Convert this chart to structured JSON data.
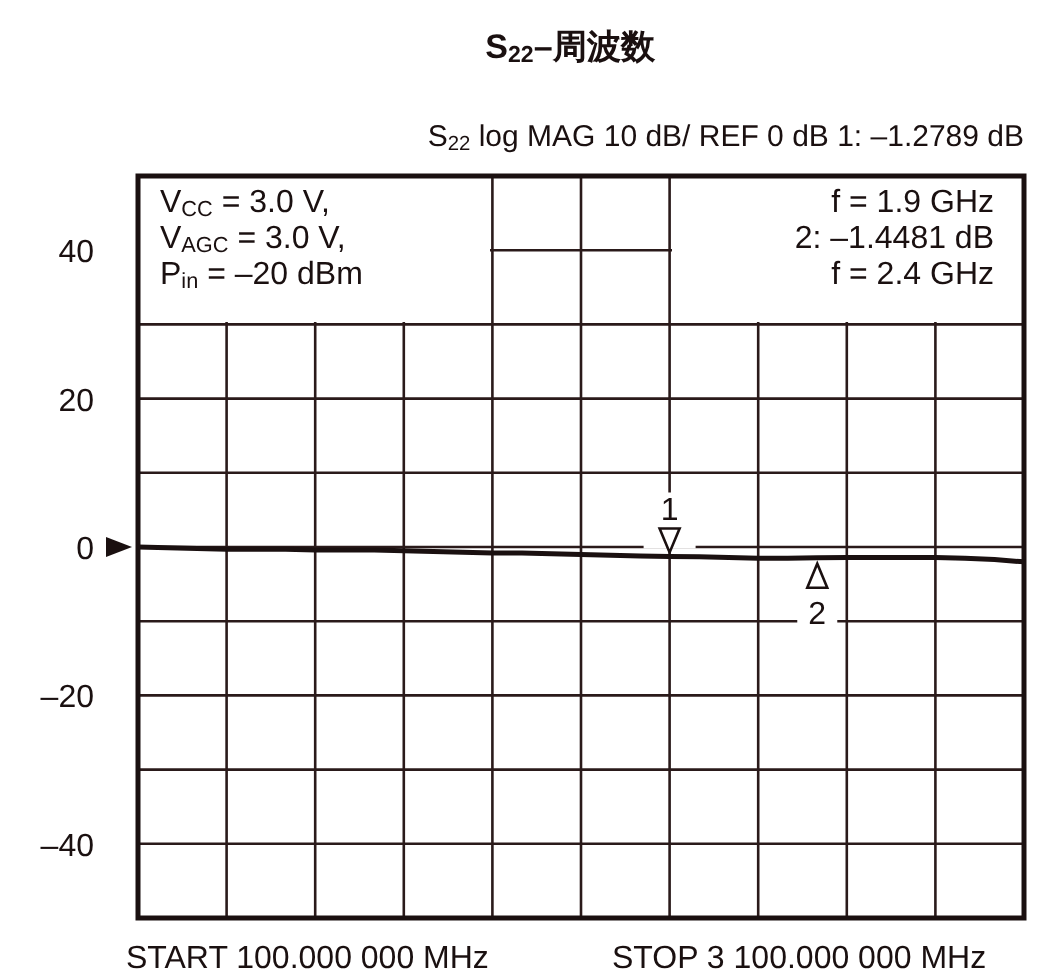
{
  "chart_data": {
    "type": "line",
    "title": "S$_{22}$–周波数",
    "subtitle": "S$_{22}$  log  MAG    10 dB/    REF 0 dB    1: –1.2789 dB",
    "categories": [
      null,
      null,
      null,
      null,
      null,
      null,
      null,
      null,
      null,
      null,
      null,
      null,
      null,
      null,
      null,
      null,
      null,
      null,
      null,
      null,
      null,
      null,
      null,
      null,
      null,
      null,
      null,
      null,
      null,
      null,
      null
    ],
    "series": [
      {
        "color": "#1a1010",
        "values": [
          0,
          -0.1,
          -0.2,
          -0.3,
          -0.3,
          -0.3,
          -0.4,
          -0.4,
          -0.4,
          -0.5,
          -0.6,
          -0.7,
          -0.8,
          -0.8,
          -0.9,
          -1.0,
          -1.1,
          -1.2,
          -1.2789,
          -1.3,
          -1.4,
          -1.5,
          -1.5,
          -1.4481,
          -1.4,
          -1.4,
          -1.4,
          -1.4,
          -1.5,
          -1.7,
          -2.0
        ]
      }
    ],
    "ylim": [
      -50,
      50
    ],
    "yticks": [
      {
        "value": -50,
        "label": null
      },
      {
        "value": -40,
        "label": "–40"
      },
      {
        "value": -30,
        "label": null
      },
      {
        "value": -20,
        "label": "–20"
      },
      {
        "value": -10,
        "label": null
      },
      0,
      {
        "value": 10,
        "label": null
      },
      20,
      {
        "value": 30,
        "label": null
      },
      40,
      {
        "value": 50,
        "label": null
      }
    ],
    "grid": true,
    "marker": "none",
    "line_style": "solid",
    "annotations": [
      "V$_{CC}$ = 3.0 V,\nV$_{AGC}$ = 3.0 V,\nP$_{in}$ = –20 dBm",
      "f = 1.9 GHz\n2: –1.4481 dB\nf = 2.4 GHz",
      "START  100.000 000 MHz",
      "STOP  3 100.000 000 MHz",
      {
        "text": "1",
        "y": -1.2789
      },
      {
        "text": "2",
        "y": -1.4481
      }
    ]
  }
}
